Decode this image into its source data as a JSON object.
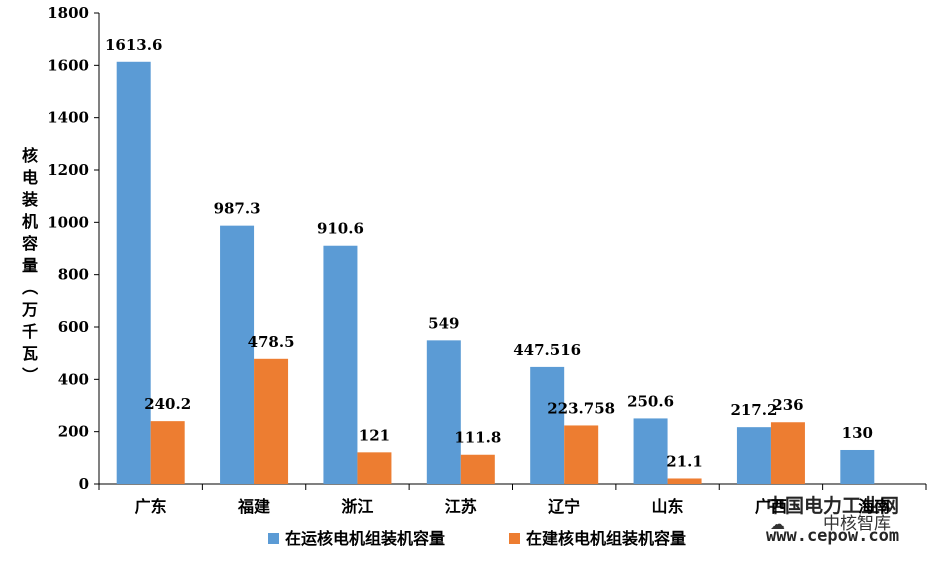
{
  "chart_data": {
    "type": "bar",
    "ylabel": "核电装机容量（万千瓦）",
    "xlabel": "",
    "ylim": [
      0,
      1800
    ],
    "yticks": [
      0,
      200,
      400,
      600,
      800,
      1000,
      1200,
      1400,
      1600,
      1800
    ],
    "categories": [
      "广东",
      "福建",
      "浙江",
      "江苏",
      "辽宁",
      "山东",
      "广西",
      "海南"
    ],
    "series": [
      {
        "name": "在运核电机组装机容量",
        "color": "#5b9bd5",
        "values": [
          1613.6,
          987.3,
          910.6,
          549,
          447.516,
          250.6,
          217.2,
          130
        ],
        "labels": [
          "1613.6",
          "987.3",
          "910.6",
          "549",
          "447.516",
          "250.6",
          "217.2",
          "130"
        ]
      },
      {
        "name": "在建核电机组装机容量",
        "color": "#ed7d31",
        "values": [
          240.2,
          478.5,
          121,
          111.8,
          223.758,
          21.1,
          236,
          null
        ],
        "labels": [
          "240.2",
          "478.5",
          "121",
          "111.8",
          "223.758",
          "21.1",
          "236",
          ""
        ]
      }
    ],
    "legend": "bottom",
    "grid": false
  },
  "watermark": {
    "line1": "中国电力工业网",
    "line2": "中核智库",
    "line3": "www.cepow.com",
    "color": "#1a7a5a",
    "icon": "wechat-icon"
  }
}
